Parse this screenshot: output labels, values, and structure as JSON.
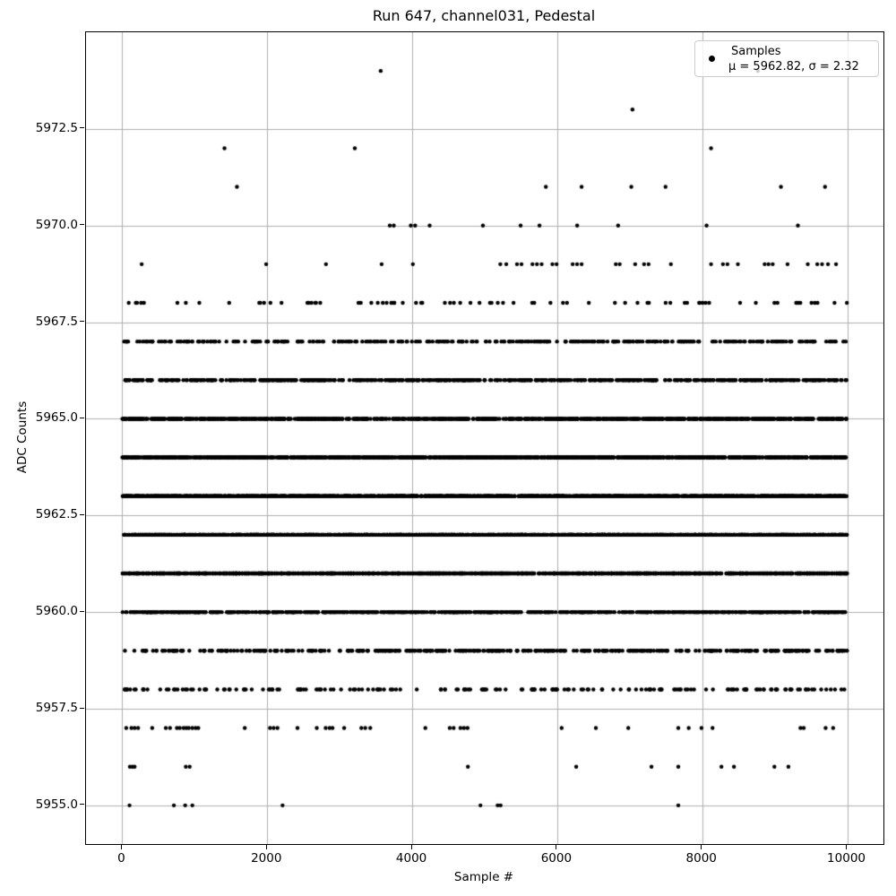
{
  "chart_data": {
    "type": "scatter",
    "title": "Run 647, channel031, Pedestal",
    "xlabel": "Sample #",
    "ylabel": "ADC Counts",
    "xlim": [
      -500,
      10500
    ],
    "ylim": [
      5954,
      5975
    ],
    "x_ticks": [
      0,
      2000,
      4000,
      6000,
      8000,
      10000
    ],
    "x_tick_labels": [
      "0",
      "2000",
      "4000",
      "6000",
      "8000",
      "10000"
    ],
    "y_ticks": [
      5955.0,
      5957.5,
      5960.0,
      5962.5,
      5965.0,
      5967.5,
      5970.0,
      5972.5
    ],
    "y_tick_labels": [
      "5955.0",
      "5957.5",
      "5960.0",
      "5962.5",
      "5965.0",
      "5967.5",
      "5970.0",
      "5972.5"
    ],
    "grid": true,
    "grid_color": "#b0b0b0",
    "marker": {
      "color": "#000000",
      "radius_px": 2.2
    },
    "n_samples": 10000,
    "stats": {
      "mu": 5962.82,
      "sigma": 2.32
    },
    "legend": {
      "label": "Samples",
      "stats": "μ = 5962.82, σ = 2.32",
      "position": "upper right"
    },
    "adc_bands": [
      {
        "adc": 5958,
        "approx_count": 190
      },
      {
        "adc": 5959,
        "approx_count": 440
      },
      {
        "adc": 5960,
        "approx_count": 850
      },
      {
        "adc": 5961,
        "approx_count": 1290
      },
      {
        "adc": 5962,
        "approx_count": 1570
      },
      {
        "adc": 5963,
        "approx_count": 1640
      },
      {
        "adc": 5964,
        "approx_count": 1390
      },
      {
        "adc": 5965,
        "approx_count": 990
      },
      {
        "adc": 5966,
        "approx_count": 650
      },
      {
        "adc": 5967,
        "approx_count": 345
      },
      {
        "adc": 5968,
        "approx_count": 78
      }
    ],
    "outlier_points": [
      {
        "adc": 5955,
        "samples": [
          100,
          712,
          868,
          967,
          2211,
          4941,
          5178,
          5219,
          7670
        ]
      },
      {
        "adc": 5956,
        "samples": [
          105,
          140,
          170,
          877,
          930,
          4768,
          6262,
          7300,
          7670,
          8265,
          8438,
          8996,
          9189
        ]
      },
      {
        "adc": 5957,
        "samples": [
          55,
          126,
          170,
          219,
          413,
          601,
          659,
          754,
          794,
          847,
          884,
          918,
          967,
          1012,
          1049,
          1690,
          2038,
          2088,
          2141,
          2417,
          2683,
          2806,
          2860,
          2900,
          3061,
          3298,
          3352,
          3421,
          4181,
          4517,
          4571,
          4665,
          4714,
          4763,
          6061,
          6533,
          6980,
          7670,
          7814,
          7990,
          8142,
          9355,
          9400,
          9702,
          9806
        ]
      },
      {
        "adc": 5969,
        "samples": [
          268,
          1985,
          2810,
          3578,
          4009,
          5215,
          5297,
          5445,
          5507,
          5658,
          5720,
          5785,
          5933,
          5991,
          6213,
          6274,
          6336,
          6808,
          6862,
          7075,
          7198,
          7260,
          7568,
          8122,
          8286,
          8348,
          8492,
          8861,
          8914,
          8972,
          9177,
          9456,
          9587,
          9653,
          9735,
          9846
        ]
      },
      {
        "adc": 5970,
        "samples": [
          3690,
          3745,
          3980,
          4040,
          4240,
          4975,
          5495,
          5755,
          6275,
          6840,
          8060,
          9320
        ]
      },
      {
        "adc": 5971,
        "samples": [
          1582,
          5843,
          6336,
          7022,
          7494,
          9086,
          9694
        ]
      },
      {
        "adc": 5972,
        "samples": [
          1410,
          3208,
          8122
        ]
      },
      {
        "adc": 5973,
        "samples": [
          7038
        ]
      },
      {
        "adc": 5974,
        "samples": [
          3565,
          8768
        ]
      }
    ]
  }
}
